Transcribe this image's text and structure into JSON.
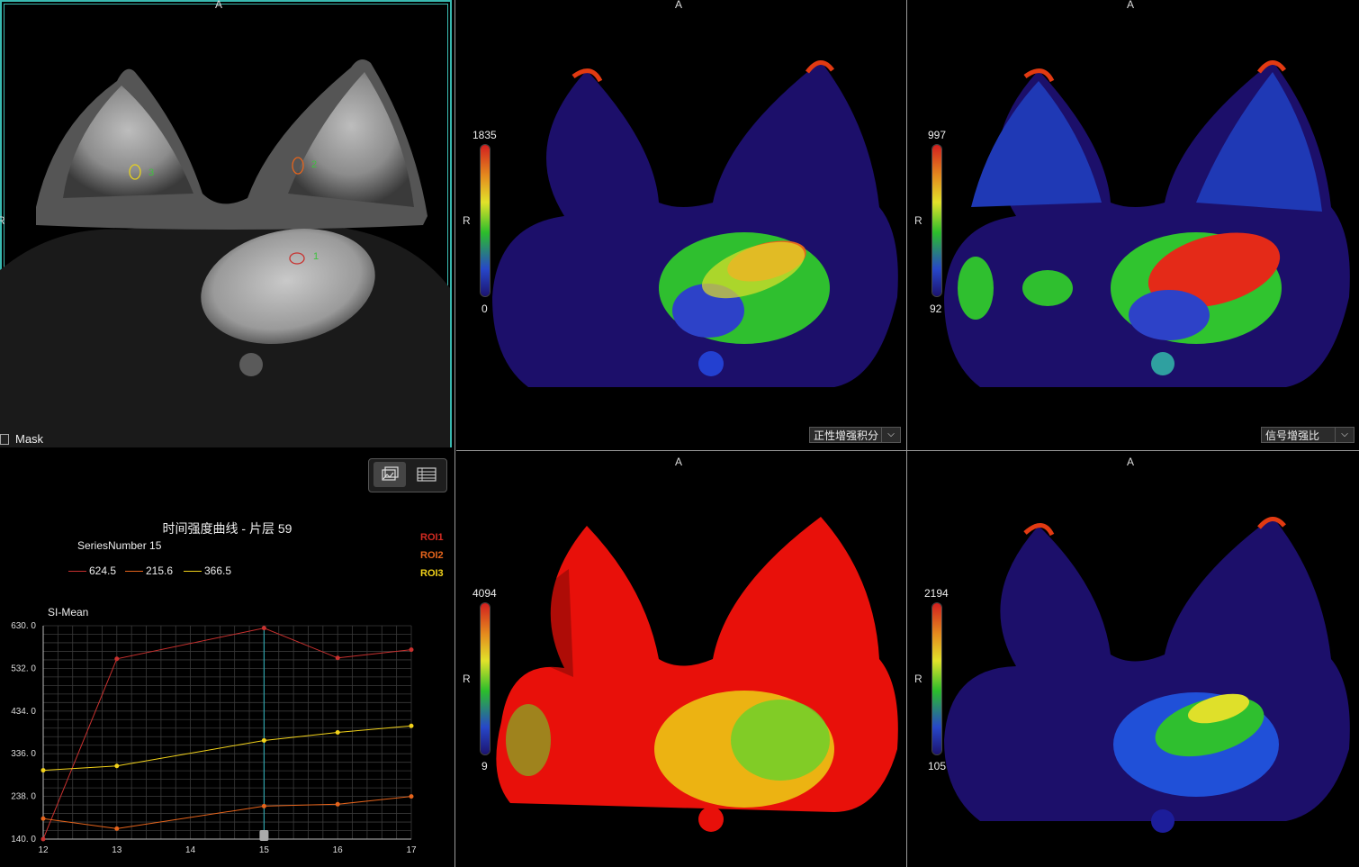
{
  "viewports": {
    "main": {
      "orient_top": "A",
      "orient_left": "R",
      "mask_label": "Mask",
      "roi_labels": [
        "1",
        "2",
        "3"
      ]
    },
    "tr1": {
      "orient_top": "A",
      "orient_left": "R",
      "scale_max": "1835",
      "scale_min": "0",
      "map_select": "正性增强积分"
    },
    "tr2": {
      "orient_top": "A",
      "orient_left": "R",
      "scale_max": "997",
      "scale_min": "92",
      "map_select": "信号增强比"
    },
    "br1": {
      "orient_top": "A",
      "orient_left": "R",
      "scale_max": "4094",
      "scale_min": "9"
    },
    "br2": {
      "orient_top": "A",
      "orient_left": "R",
      "scale_max": "2194",
      "scale_min": "105"
    }
  },
  "toolbar": {
    "chart_icon": "chart-view-icon",
    "table_icon": "table-view-icon"
  },
  "chart": {
    "title": "时间强度曲线 - 片层 59",
    "series_number": "SeriesNumber 15",
    "legend_values": [
      "624.5",
      "215.6",
      "366.5"
    ],
    "roi_legend": [
      "ROI1",
      "ROI2",
      "ROI3"
    ],
    "ylabel": "SI-Mean"
  },
  "colors": {
    "roi1": "#c8312f",
    "roi2": "#e5641c",
    "roi3": "#f2d21a",
    "cursor": "#2fa0a8",
    "accent": "#39b9b0"
  },
  "chart_data": {
    "type": "line",
    "title": "时间强度曲线 - 片层 59",
    "ylabel": "SI-Mean",
    "x": [
      12,
      13,
      14,
      15,
      16,
      17
    ],
    "xticks": [
      "12",
      "13",
      "14",
      "15",
      "16",
      "17"
    ],
    "yticks": [
      "630. 0",
      "532. 0",
      "434. 0",
      "336. 0",
      "238. 0",
      "140. 0"
    ],
    "ylim": [
      140,
      630
    ],
    "grid": true,
    "cursor_x": 15,
    "series": [
      {
        "name": "ROI1",
        "x": [
          12,
          13,
          15,
          16,
          17
        ],
        "values": [
          140,
          554,
          624.5,
          556,
          575
        ]
      },
      {
        "name": "ROI2",
        "x": [
          12,
          13,
          15,
          16,
          17
        ],
        "values": [
          187,
          164,
          215.6,
          220,
          238
        ]
      },
      {
        "name": "ROI3",
        "x": [
          12,
          13,
          15,
          16,
          17
        ],
        "values": [
          298,
          308,
          366.5,
          385,
          400
        ]
      }
    ]
  }
}
